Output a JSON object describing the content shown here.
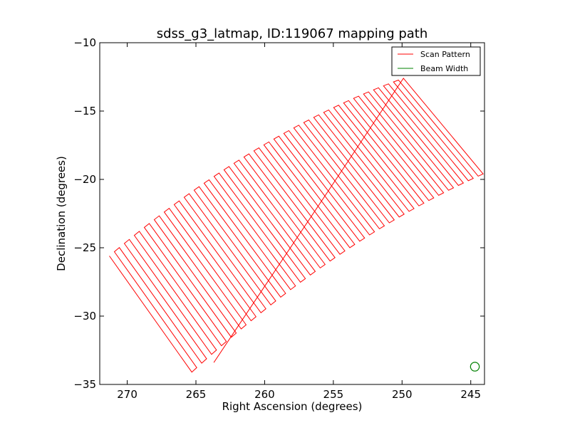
{
  "chart_data": {
    "type": "line",
    "title": "sdss_g3_latmap, ID:119067 mapping path",
    "xlabel": "Right Ascension (degrees)",
    "ylabel": "Declination (degrees)",
    "xlim": [
      272,
      244
    ],
    "ylim": [
      -35,
      -10
    ],
    "x_inverted": true,
    "xticks": [
      270,
      265,
      260,
      255,
      250,
      245
    ],
    "xtick_labels": [
      "270",
      "265",
      "260",
      "255",
      "250",
      "245"
    ],
    "yticks": [
      -10,
      -15,
      -20,
      -25,
      -30,
      -35
    ],
    "ytick_labels": [
      "−10",
      "−15",
      "−20",
      "−25",
      "−30",
      "−35"
    ],
    "grid": false,
    "legend": {
      "placement": "top-right",
      "entries": [
        {
          "label": "Scan Pattern",
          "color": "#ff0000"
        },
        {
          "label": "Beam Width",
          "color": "#008000"
        }
      ]
    },
    "series": [
      {
        "name": "Scan Pattern",
        "color": "#ff0000",
        "style": "boustrophedon",
        "scan_lines": 60,
        "corners": {
          "top_left": [
            271.3,
            -25.6
          ],
          "top_right": [
            249.9,
            -12.6
          ],
          "bottom_right": [
            244.1,
            -19.6
          ],
          "bottom_left": [
            265.3,
            -34.1
          ]
        },
        "arc_midpoints": {
          "top": [
            260.6,
            -17.8
          ],
          "bottom": [
            254.7,
            -25.6
          ]
        },
        "end_point": [
          263.7,
          -33.4
        ]
      },
      {
        "name": "Beam Width",
        "color": "#008000",
        "type": "circle",
        "center": [
          244.7,
          -33.7
        ],
        "radius_deg": 0.32
      }
    ]
  }
}
